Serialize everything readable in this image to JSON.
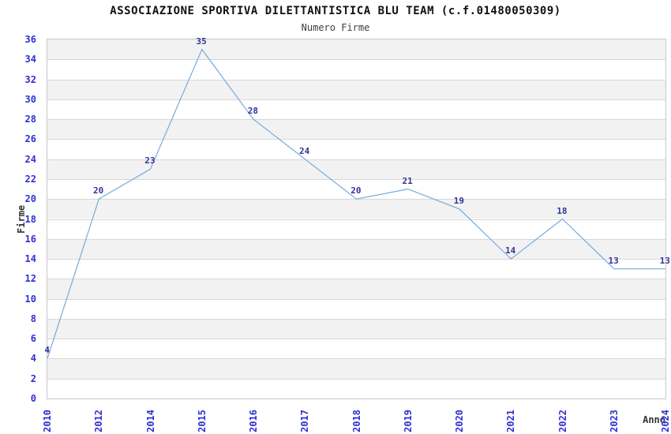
{
  "header": {
    "title": "ASSOCIAZIONE SPORTIVA DILETTANTISTICA BLU TEAM (c.f.01480050309)",
    "subtitle": "Numero Firme"
  },
  "chart_data": {
    "type": "line",
    "title": "ASSOCIAZIONE SPORTIVA DILETTANTISTICA BLU TEAM (c.f.01480050309)",
    "subtitle": "Numero Firme",
    "xlabel": "Anno",
    "ylabel": "Firme",
    "categories": [
      "2010",
      "2012",
      "2014",
      "2015",
      "2016",
      "2017",
      "2018",
      "2019",
      "2020",
      "2021",
      "2022",
      "2023",
      "2024"
    ],
    "values": [
      4,
      20,
      23,
      35,
      28,
      24,
      20,
      21,
      19,
      14,
      18,
      13,
      13
    ],
    "ylim": [
      0,
      36
    ],
    "ytick_step": 2,
    "yticks": [
      0,
      2,
      4,
      6,
      8,
      10,
      12,
      14,
      16,
      18,
      20,
      22,
      24,
      26,
      28,
      30,
      32,
      34,
      36
    ],
    "grid": "horizontal-bands-alternating",
    "legend": "none",
    "colors": {
      "line": "#78aadc",
      "point_label": "#333399",
      "tick_label": "#2f2fd3",
      "band": "#f2f2f2",
      "band_alt": "#ffffff",
      "gridline": "#d7d7d7",
      "plot_border": "#c8c8c8",
      "title": "#111111",
      "subtitle": "#3d3d3d",
      "axis_title": "#333333"
    }
  }
}
